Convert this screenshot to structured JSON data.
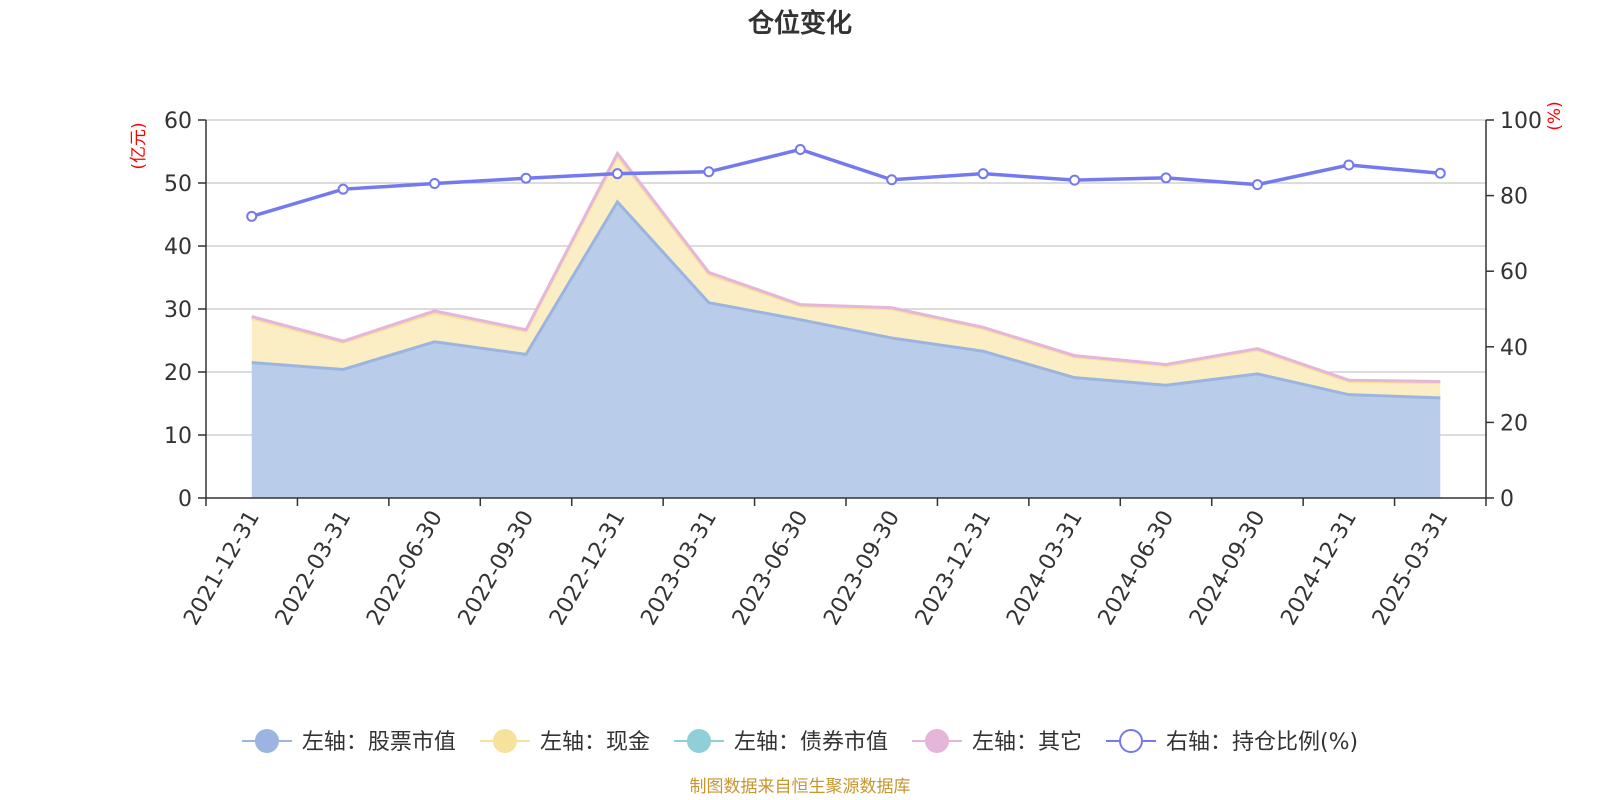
{
  "title": "仓位变化",
  "source": "制图数据来自恒生聚源数据库",
  "colors": {
    "stock": "#9bb5e0",
    "stock_fill": "#b9cdea",
    "cash": "#f7e29b",
    "cash_fill": "#fbeec4",
    "bond": "#8fd0d8",
    "other": "#e5b5da",
    "ratio": "#7479ef",
    "axis": "#333333",
    "grid": "#c8c8c8",
    "unit": "#ff0000"
  },
  "chart_data": {
    "type": "area",
    "x": [
      "2021-12-31",
      "2022-03-31",
      "2022-06-30",
      "2022-09-30",
      "2022-12-31",
      "2023-03-31",
      "2023-06-30",
      "2023-09-30",
      "2023-12-31",
      "2024-03-31",
      "2024-06-30",
      "2024-09-30",
      "2024-12-31",
      "2025-03-31"
    ],
    "left_axis": {
      "unit": "(亿元)",
      "ylim": [
        0,
        60
      ],
      "ticks": [
        0,
        10,
        20,
        30,
        40,
        50,
        60
      ]
    },
    "right_axis": {
      "unit": "(%)",
      "ylim": [
        0,
        100
      ],
      "ticks": [
        0,
        20,
        40,
        60,
        80,
        100
      ]
    },
    "stacked": true,
    "grid": true,
    "legend_position": "bottom",
    "series": [
      {
        "name": "左轴：股票市值",
        "axis": "left",
        "type": "area",
        "color_key": "stock",
        "values": [
          21.5,
          20.4,
          24.8,
          22.8,
          47.0,
          31.0,
          28.3,
          25.4,
          23.3,
          19.1,
          17.9,
          19.7,
          16.4,
          15.9
        ]
      },
      {
        "name": "左轴：现金",
        "axis": "left",
        "type": "area",
        "color_key": "cash",
        "values": [
          7.0,
          4.3,
          4.6,
          3.7,
          7.3,
          4.5,
          2.2,
          4.6,
          3.6,
          3.3,
          3.1,
          3.8,
          2.1,
          2.4
        ]
      },
      {
        "name": "左轴：债券市值",
        "axis": "left",
        "type": "area",
        "color_key": "bond",
        "values": [
          0,
          0,
          0,
          0,
          0,
          0,
          0,
          0,
          0,
          0,
          0,
          0,
          0,
          0
        ]
      },
      {
        "name": "左轴：其它",
        "axis": "left",
        "type": "area",
        "color_key": "other",
        "values": [
          0.3,
          0.2,
          0.3,
          0.2,
          0.4,
          0.3,
          0.2,
          0.2,
          0.2,
          0.2,
          0.2,
          0.2,
          0.2,
          0.2
        ]
      },
      {
        "name": "右轴：持仓比例(%)",
        "axis": "right",
        "type": "line",
        "color_key": "ratio",
        "values": [
          74.5,
          81.7,
          83.2,
          84.6,
          85.8,
          86.3,
          92.2,
          84.2,
          85.8,
          84.1,
          84.7,
          82.9,
          88.1,
          85.9
        ]
      }
    ]
  }
}
